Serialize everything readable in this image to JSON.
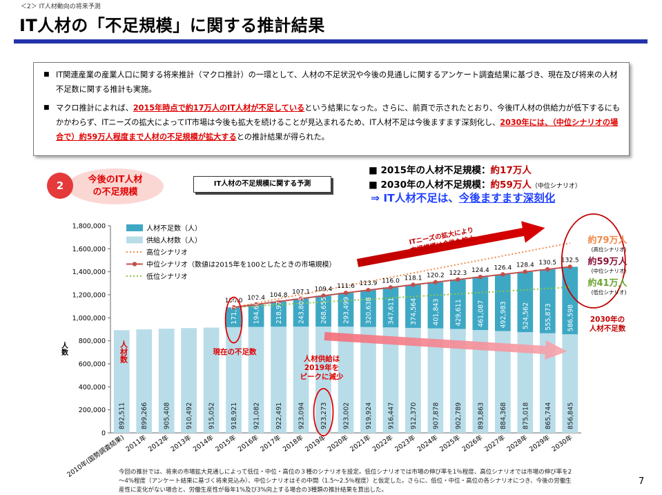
{
  "header": {
    "breadcrumb": "＜2＞ IT人材動向の将来予測",
    "title": "IT人材の「不足規模」に関する推計結果"
  },
  "summary": {
    "bullet": "■",
    "p1": "IT関連産業の産業人口に関する将来推計（マクロ推計）の一環として、人材の不足状況や今後の見通しに関するアンケート調査結果に基づき、現在及び将来の人材不足数に関する推計も実施。",
    "p2_a": "マクロ推計によれば、",
    "p2_hl1": "2015年時点で約17万人のIT人材が不足している",
    "p2_b": "という結果になった。さらに、前頁で示されたとおり、今後IT人材の供給力が低下するにもかかわらず、ITニーズの拡大によってIT市場は今後も拡大を続けることが見込まれるため、IT人材不足は今後ますます深刻化し、",
    "p2_hl2": "2030年には、（中位シナリオの場合で）約59万人程度まで人材の不足規模が拡大する",
    "p2_c": "との推計結果が得られた。"
  },
  "badge": {
    "number": "2",
    "line1": "今後のIT人材",
    "line2": "の不足規模"
  },
  "forecast_label": "IT人材の不足規模に関する予測",
  "key_figures": {
    "bullet": "■",
    "l1_label": "2015年の人材不足規模：",
    "l1_value": "約17万人",
    "l2_label": "2030年の人材不足規模：",
    "l2_value": "約59万人",
    "l2_note": "（中位シナリオ）",
    "conclusion_a": "⇒ IT人材不足は、",
    "conclusion_b": "今後ますます深刻化"
  },
  "chart_data": {
    "type": "bar",
    "ylabel": "人数",
    "ylim": [
      0,
      1800000
    ],
    "yticks": [
      "0",
      "200,000",
      "400,000",
      "600,000",
      "800,000",
      "1,000,000",
      "1,200,000",
      "1,400,000",
      "1,600,000",
      "1,800,000"
    ],
    "categories": [
      "2010年(国勢調査結果)",
      "2011年",
      "2012年",
      "2013年",
      "2014年",
      "2015年",
      "2016年",
      "2017年",
      "2018年",
      "2019年",
      "2020年",
      "2021年",
      "2022年",
      "2023年",
      "2024年",
      "2025年",
      "2026年",
      "2027年",
      "2028年",
      "2029年",
      "2030年"
    ],
    "series": [
      {
        "name": "人材不足数（人）",
        "color": "#3ea8c4",
        "values": [
          null,
          null,
          null,
          null,
          null,
          171700,
          194608,
          218976,
          243805,
          268655,
          293499,
          320638,
          347611,
          374564,
          401843,
          429611,
          461087,
          492983,
          524562,
          555873,
          586598
        ]
      },
      {
        "name": "供給人材数（人）",
        "color": "#b8dde9",
        "values": [
          892511,
          899266,
          905408,
          910492,
          915052,
          918921,
          921082,
          922491,
          923094,
          923273,
          923002,
          919924,
          916447,
          912370,
          907878,
          902789,
          893863,
          884368,
          875018,
          865744,
          856845
        ],
        "labels": [
          "892,511",
          "899,266",
          "905,408",
          "910,492",
          "915,052",
          "918,921",
          "921,082",
          "922,491",
          "923,094",
          "923,273",
          "923,002",
          "919,924",
          "916,447",
          "912,370",
          "907,878",
          "902,789",
          "893,863",
          "884,368",
          "875,018",
          "865,744",
          "856,845"
        ]
      },
      {
        "name": "高位シナリオ",
        "color": "#f0894a"
      },
      {
        "name": "中位シナリオ（数値は2015年を100としたときの市場規模）",
        "color": "#c0504d",
        "index": [
          null,
          null,
          null,
          null,
          null,
          100.0,
          102.4,
          104.8,
          107.1,
          109.4,
          111.6,
          113.9,
          116.0,
          118.1,
          120.2,
          122.3,
          124.4,
          126.4,
          128.4,
          130.5,
          132.5
        ]
      },
      {
        "name": "低位シナリオ",
        "color": "#8cc63f"
      }
    ],
    "shortage_labels": [
      "",
      "",
      "",
      "",
      "",
      "171,700",
      "194,608",
      "218,976",
      "243,805",
      "268,655",
      "293,499",
      "320,638",
      "347,611",
      "374,564",
      "401,843",
      "429,611",
      "461,087",
      "492,983",
      "524,562",
      "555,873",
      "586,598"
    ],
    "scenario_endpoints": {
      "high": {
        "value": 1650000,
        "label": "約79万人",
        "note": "(高位シナリオ)"
      },
      "mid": {
        "value": 1443000,
        "label": "約59万人",
        "note": "(中位シナリオ)"
      },
      "low": {
        "value": 1266000,
        "label": "約41万人",
        "note": "(低位シナリオ)"
      }
    },
    "annotations": {
      "supply_vertical": "人材数",
      "current_shortage": "現在の不足数",
      "peak_line1": "人材供給は",
      "peak_line2": "2019年を",
      "peak_line3": "ピークに減少",
      "needs_line1": "ITニーズの拡大により",
      "needs_line2": "市場規模は今後も拡大",
      "shortage2030_line1": "2030年の",
      "shortage2030_line2": "人材不足数"
    }
  },
  "footnote": "今回の推計では、将来の市場拡大見通しによって低位・中位・高位の３種のシナリオを設定。低位シナリオでは市場の伸び率を1％程度、高位シナリオでは市場の伸び率を2～4%程度（アンケート結果に基づく将来見込み）、中位シナリオはその中間（1.5～2.5％程度）と仮定した。さらに、低位・中位・高位の各シナリオにつき、今後の労働生産性に変化がない場合と、労働生産性が毎年1%及び3%向上する場合の3種類の推計結果を算出した。",
  "page_number": "7"
}
